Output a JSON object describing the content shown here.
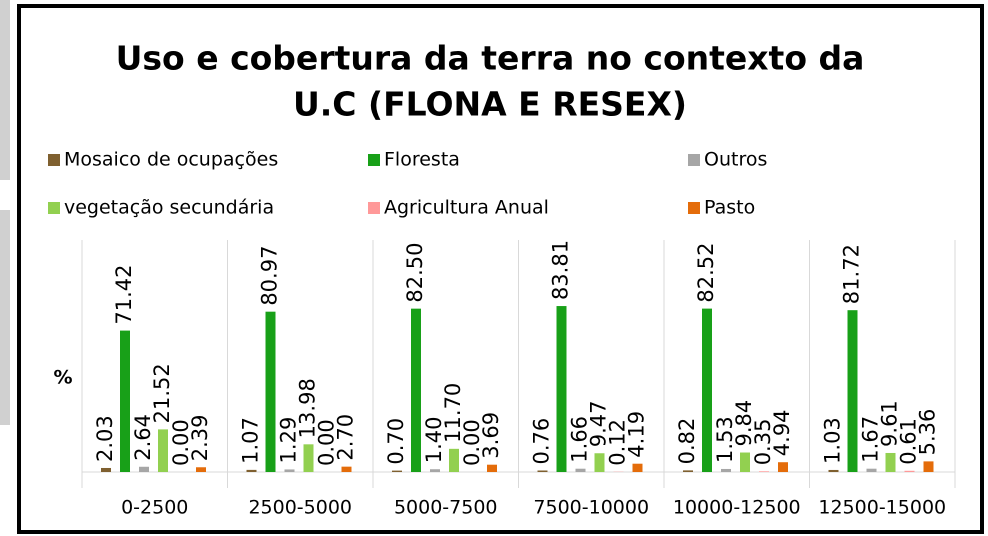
{
  "chart_data": {
    "type": "bar",
    "title_lines": [
      "Uso  e cobertura da terra no contexto da",
      "U.C (FLONA E RESEX)"
    ],
    "y_label": "%",
    "categories": [
      "0-2500",
      "2500-5000",
      "5000-7500",
      "7500-10000",
      "10000-12500",
      "12500-15000"
    ],
    "ylim": [
      0,
      100
    ],
    "series": [
      {
        "name": "Mosaico de ocupações",
        "color": "#7f6030",
        "values": [
          2.03,
          1.07,
          0.7,
          0.76,
          0.82,
          1.03
        ],
        "value_labels": [
          "2.03",
          "1.07",
          "0.70",
          "0.76",
          "0.82",
          "1.03"
        ]
      },
      {
        "name": "Floresta",
        "color": "#18a018",
        "values": [
          71.42,
          80.97,
          82.5,
          83.81,
          82.52,
          81.72
        ],
        "value_labels": [
          "71.42",
          "80.97",
          "82.50",
          "83.81",
          "82.52",
          "81.72"
        ]
      },
      {
        "name": "Outros",
        "color": "#a6a6a6",
        "values": [
          2.64,
          1.29,
          1.4,
          1.66,
          1.53,
          1.67
        ],
        "value_labels": [
          "2.64",
          "1.29",
          "1.40",
          "1.66",
          "1.53",
          "1.67"
        ]
      },
      {
        "name": "vegetação secundária",
        "color": "#92d050",
        "values": [
          21.52,
          13.98,
          11.7,
          9.47,
          9.84,
          9.61
        ],
        "value_labels": [
          "21.52",
          "13.98",
          "11.70",
          "9.47",
          "9.84",
          "9.61"
        ]
      },
      {
        "name": "Agricultura Anual",
        "color": "#ff9999",
        "values": [
          0.0,
          0.0,
          0.0,
          0.12,
          0.35,
          0.61
        ],
        "value_labels": [
          "0.00",
          "0.00",
          "0.00",
          "0.12",
          "0.35",
          "0.61"
        ]
      },
      {
        "name": "Pasto",
        "color": "#e46c0a",
        "values": [
          2.39,
          2.7,
          3.69,
          4.19,
          4.94,
          5.36
        ],
        "value_labels": [
          "2.39",
          "2.70",
          "3.69",
          "4.19",
          "4.94",
          "5.36"
        ]
      }
    ]
  }
}
